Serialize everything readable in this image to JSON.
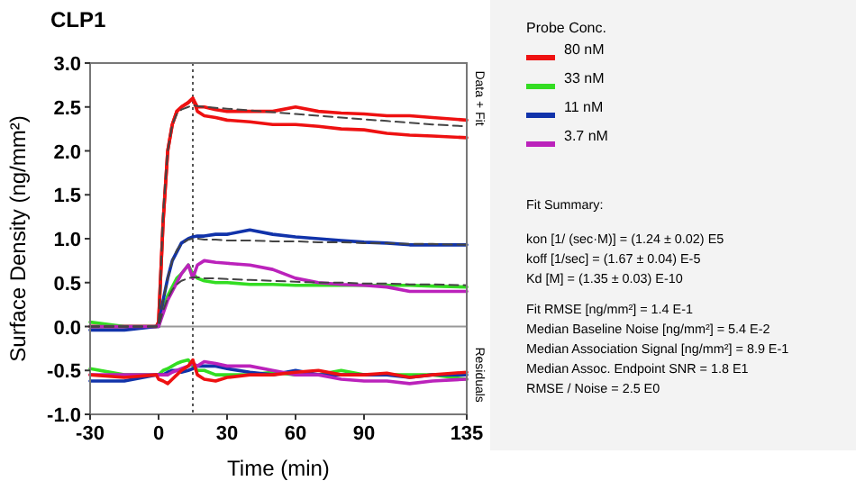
{
  "chart_data": {
    "type": "line",
    "title": "CLP1",
    "xlabel": "Time (min)",
    "ylabel": "Surface Density (ng/mm²)",
    "legend_title": "Probe Conc.",
    "legend": "right",
    "grid": false,
    "marker": "none",
    "xlim": [
      -30,
      135
    ],
    "xticks": [
      -30,
      0,
      30,
      60,
      90,
      135
    ],
    "ylim": [
      -1,
      3
    ],
    "yticks": [
      {
        "value": -1,
        "label": "-1.0"
      },
      {
        "value": -0.5,
        "label": "-0.5"
      },
      {
        "value": 0,
        "label": "0.0"
      },
      {
        "value": 0.5,
        "label": "0.5"
      },
      {
        "value": 1,
        "label": "1.0"
      },
      {
        "value": 1.5,
        "label": "1.5"
      },
      {
        "value": 2,
        "label": "2.0"
      },
      {
        "value": 2.5,
        "label": "2.5"
      },
      {
        "value": 3,
        "label": "3.0"
      }
    ],
    "x": [
      -30,
      -15,
      -1,
      0,
      2,
      4,
      6,
      8,
      10,
      13,
      15,
      17,
      20,
      25,
      30,
      40,
      50,
      60,
      70,
      80,
      90,
      100,
      110,
      120,
      135
    ],
    "ref_lines": [
      {
        "axis": "x",
        "value": 15,
        "label": null,
        "color": "#555555",
        "line_style": "dotted"
      },
      {
        "axis": "y",
        "value": 0,
        "label": null,
        "color": "#999999",
        "line_style": "solid"
      }
    ],
    "series": [
      {
        "name": "80 nM",
        "color": "#ee1111",
        "values": [
          0,
          0,
          0,
          0.05,
          1.2,
          2.0,
          2.3,
          2.45,
          2.5,
          2.55,
          2.6,
          2.5,
          2.5,
          2.47,
          2.45,
          2.45,
          2.45,
          2.5,
          2.45,
          2.43,
          2.42,
          2.4,
          2.4,
          2.38,
          2.35
        ]
      },
      {
        "color": "#ee1111",
        "values": [
          0,
          0,
          0,
          0.05,
          1.2,
          2.0,
          2.3,
          2.45,
          2.5,
          2.55,
          2.6,
          2.45,
          2.4,
          2.38,
          2.35,
          2.33,
          2.3,
          2.3,
          2.28,
          2.25,
          2.24,
          2.2,
          2.18,
          2.17,
          2.15
        ]
      },
      {
        "name": "33 nM",
        "color": "#33dd22",
        "values": [
          0.05,
          0,
          0,
          0,
          0.2,
          0.35,
          0.45,
          0.55,
          0.6,
          0.7,
          0.6,
          0.55,
          0.52,
          0.5,
          0.5,
          0.48,
          0.48,
          0.47,
          0.47,
          0.47,
          0.47,
          0.47,
          0.47,
          0.46,
          0.45
        ]
      },
      {
        "name": "11 nM",
        "color": "#1133aa",
        "values": [
          -0.04,
          -0.04,
          0,
          0,
          0.3,
          0.55,
          0.75,
          0.85,
          0.95,
          1.0,
          1.02,
          1.03,
          1.03,
          1.05,
          1.05,
          1.1,
          1.05,
          1.02,
          1.0,
          0.98,
          0.96,
          0.95,
          0.93,
          0.93,
          0.93
        ]
      },
      {
        "name": "3.7 nM",
        "color": "#bb22bb",
        "values": [
          0,
          0,
          0,
          0,
          0.15,
          0.3,
          0.4,
          0.5,
          0.6,
          0.7,
          0.55,
          0.7,
          0.75,
          0.73,
          0.72,
          0.7,
          0.65,
          0.55,
          0.5,
          0.48,
          0.47,
          0.45,
          0.4,
          0.4,
          0.4
        ]
      },
      {
        "color": "#444444",
        "line_style": "dashed",
        "values": [
          0,
          0,
          0,
          0,
          1.3,
          2.0,
          2.3,
          2.42,
          2.47,
          2.5,
          2.52,
          2.51,
          2.5,
          2.49,
          2.48,
          2.46,
          2.44,
          2.42,
          2.4,
          2.38,
          2.36,
          2.34,
          2.32,
          2.3,
          2.28
        ]
      },
      {
        "color": "#444444",
        "line_style": "dashed",
        "values": [
          0,
          0,
          0,
          0,
          0.3,
          0.55,
          0.75,
          0.87,
          0.94,
          0.99,
          1.0,
          1.0,
          0.99,
          0.99,
          0.98,
          0.98,
          0.97,
          0.97,
          0.96,
          0.96,
          0.95,
          0.95,
          0.94,
          0.94,
          0.93
        ]
      },
      {
        "color": "#444444",
        "line_style": "dashed",
        "values": [
          0,
          0,
          0,
          0,
          0.18,
          0.32,
          0.42,
          0.48,
          0.52,
          0.55,
          0.56,
          0.56,
          0.55,
          0.55,
          0.54,
          0.53,
          0.52,
          0.51,
          0.5,
          0.5,
          0.49,
          0.49,
          0.48,
          0.48,
          0.47
        ]
      },
      {
        "color": "#33dd22",
        "values": [
          -0.48,
          -0.55,
          -0.55,
          -0.55,
          -0.5,
          -0.48,
          -0.45,
          -0.42,
          -0.4,
          -0.38,
          -0.45,
          -0.5,
          -0.5,
          -0.55,
          -0.55,
          -0.55,
          -0.52,
          -0.55,
          -0.55,
          -0.5,
          -0.55,
          -0.55,
          -0.55,
          -0.55,
          -0.6
        ]
      },
      {
        "color": "#1133aa",
        "values": [
          -0.62,
          -0.62,
          -0.55,
          -0.55,
          -0.55,
          -0.52,
          -0.5,
          -0.5,
          -0.52,
          -0.5,
          -0.48,
          -0.45,
          -0.45,
          -0.45,
          -0.48,
          -0.52,
          -0.55,
          -0.5,
          -0.55,
          -0.55,
          -0.55,
          -0.55,
          -0.58,
          -0.55,
          -0.55
        ]
      },
      {
        "color": "#bb22bb",
        "values": [
          -0.55,
          -0.55,
          -0.55,
          -0.55,
          -0.55,
          -0.55,
          -0.52,
          -0.5,
          -0.48,
          -0.45,
          -0.42,
          -0.45,
          -0.4,
          -0.42,
          -0.45,
          -0.45,
          -0.5,
          -0.55,
          -0.55,
          -0.6,
          -0.62,
          -0.62,
          -0.65,
          -0.62,
          -0.6
        ]
      },
      {
        "color": "#ee1111",
        "values": [
          -0.55,
          -0.58,
          -0.55,
          -0.6,
          -0.62,
          -0.65,
          -0.6,
          -0.55,
          -0.5,
          -0.45,
          -0.38,
          -0.55,
          -0.6,
          -0.62,
          -0.58,
          -0.55,
          -0.55,
          -0.52,
          -0.5,
          -0.55,
          -0.55,
          -0.53,
          -0.58,
          -0.55,
          -0.52
        ]
      }
    ],
    "annotations": [
      "Data + Fit",
      "Residuals",
      "Fit Summary:",
      "kon  [1/ (sec·M)]  =   (1.24 ± 0.02) E5",
      "koff  [1/sec]  =   (1.67 ± 0.04) E-5",
      "Kd  [M]  =   (1.35 ± 0.03) E-10",
      "Fit RMSE [ng/mm²]  =   1.4 E-1",
      "Median Baseline Noise [ng/mm²]  =   5.4 E-2",
      "Median Association Signal [ng/mm²]  =   8.9 E-1",
      "Median Assoc. Endpoint SNR  =   1.8 E1",
      "RMSE / Noise  =   2.5 E0"
    ]
  }
}
